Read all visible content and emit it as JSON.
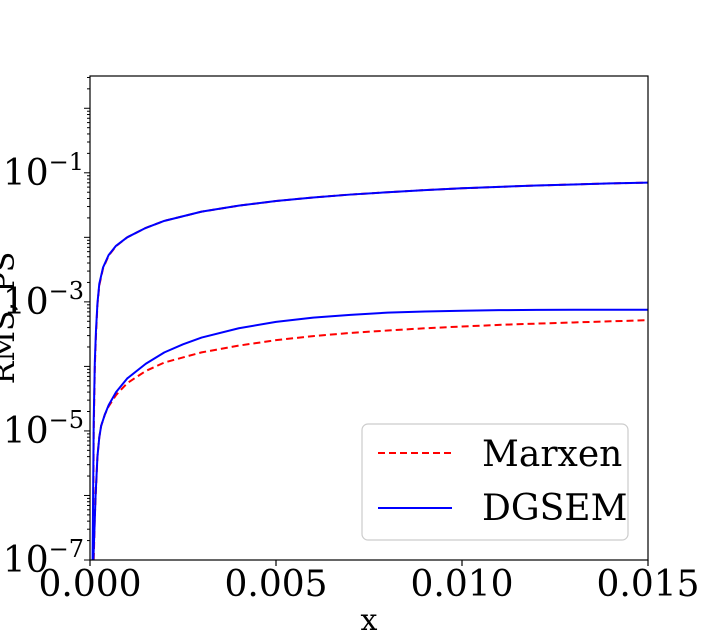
{
  "chart_data": {
    "type": "line",
    "title": "",
    "xlabel": "x",
    "ylabel": "RMS, PS",
    "xscale": "linear",
    "yscale": "log",
    "xlim": [
      0.0,
      0.015
    ],
    "ylim_exp": [
      -7,
      0.5
    ],
    "x_ticks": [
      0.0,
      0.005,
      0.01,
      0.015
    ],
    "x_tick_labels": [
      "0.000",
      "0.005",
      "0.010",
      "0.015"
    ],
    "y_tick_exponents": [
      -7,
      -5,
      -3,
      -1
    ],
    "y_tick_labels": [
      {
        "base": "10",
        "exp": "−7"
      },
      {
        "base": "10",
        "exp": "−5"
      },
      {
        "base": "10",
        "exp": "−3"
      },
      {
        "base": "10",
        "exp": "−1"
      }
    ],
    "legend_position": "lower-right",
    "series": [
      {
        "name": "Marxen",
        "color": "#ff0000",
        "style": "dashed",
        "curves": [
          {
            "x": [
              8e-05,
              0.0001,
              0.00013,
              0.00016,
              0.0002,
              0.00025,
              0.00035,
              0.0005,
              0.0007,
              0.001,
              0.0015,
              0.002,
              0.003,
              0.004,
              0.005,
              0.006,
              0.007,
              0.008,
              0.009,
              0.01,
              0.011,
              0.012,
              0.013,
              0.014,
              0.015
            ],
            "y": [
              1e-07,
              1e-05,
              0.0001,
              0.0003,
              0.0009,
              0.0018,
              0.0033,
              0.0052,
              0.0073,
              0.01,
              0.014,
              0.018,
              0.025,
              0.031,
              0.0365,
              0.0415,
              0.046,
              0.05,
              0.054,
              0.0575,
              0.0605,
              0.0635,
              0.066,
              0.0685,
              0.0705
            ]
          },
          {
            "x": [
              0.0001,
              0.00013,
              0.00016,
              0.0002,
              0.00025,
              0.0003,
              0.0004,
              0.0005,
              0.0007,
              0.001,
              0.0015,
              0.002,
              0.003,
              0.004,
              0.005,
              0.006,
              0.007,
              0.008,
              0.009,
              0.01,
              0.011,
              0.012,
              0.013,
              0.014,
              0.015
            ],
            "y": [
              1e-07,
              5e-07,
              1.2e-06,
              4e-06,
              8e-06,
              1.2e-05,
              1.8e-05,
              2.4e-05,
              3.6e-05,
              5.5e-05,
              8.5e-05,
              0.000115,
              0.000165,
              0.00021,
              0.000255,
              0.000295,
              0.00033,
              0.00036,
              0.00039,
              0.000415,
              0.00044,
              0.00046,
              0.00048,
              0.0005,
              0.00052
            ]
          }
        ]
      },
      {
        "name": "DGSEM",
        "color": "#0000ff",
        "style": "solid",
        "curves": [
          {
            "x": [
              7e-05,
              0.0001,
              0.00013,
              0.00016,
              0.0002,
              0.00025,
              0.00035,
              0.0005,
              0.0007,
              0.001,
              0.0015,
              0.002,
              0.003,
              0.004,
              0.005,
              0.006,
              0.007,
              0.008,
              0.009,
              0.01,
              0.011,
              0.012,
              0.013,
              0.014,
              0.015
            ],
            "y": [
              1e-07,
              1.5e-05,
              0.00012,
              0.00035,
              0.00095,
              0.0019,
              0.0034,
              0.0053,
              0.0074,
              0.01,
              0.014,
              0.018,
              0.025,
              0.031,
              0.0365,
              0.0415,
              0.046,
              0.05,
              0.054,
              0.0575,
              0.0605,
              0.0635,
              0.066,
              0.0685,
              0.0705
            ]
          },
          {
            "x": [
              9e-05,
              0.00012,
              0.00015,
              0.0002,
              0.00025,
              0.0003,
              0.0004,
              0.0005,
              0.0007,
              0.001,
              0.0015,
              0.002,
              0.0025,
              0.003,
              0.004,
              0.005,
              0.006,
              0.007,
              0.008,
              0.009,
              0.01,
              0.011,
              0.012,
              0.013,
              0.014,
              0.015
            ],
            "y": [
              1e-07,
              3e-07,
              1e-06,
              4e-06,
              8e-06,
              1.2e-05,
              1.8e-05,
              2.5e-05,
              4e-05,
              6.5e-05,
              0.00011,
              0.000165,
              0.00022,
              0.00028,
              0.00039,
              0.00049,
              0.00057,
              0.00063,
              0.00068,
              0.00071,
              0.00073,
              0.000745,
              0.00075,
              0.000755,
              0.000755,
              0.000755
            ]
          }
        ]
      }
    ]
  }
}
